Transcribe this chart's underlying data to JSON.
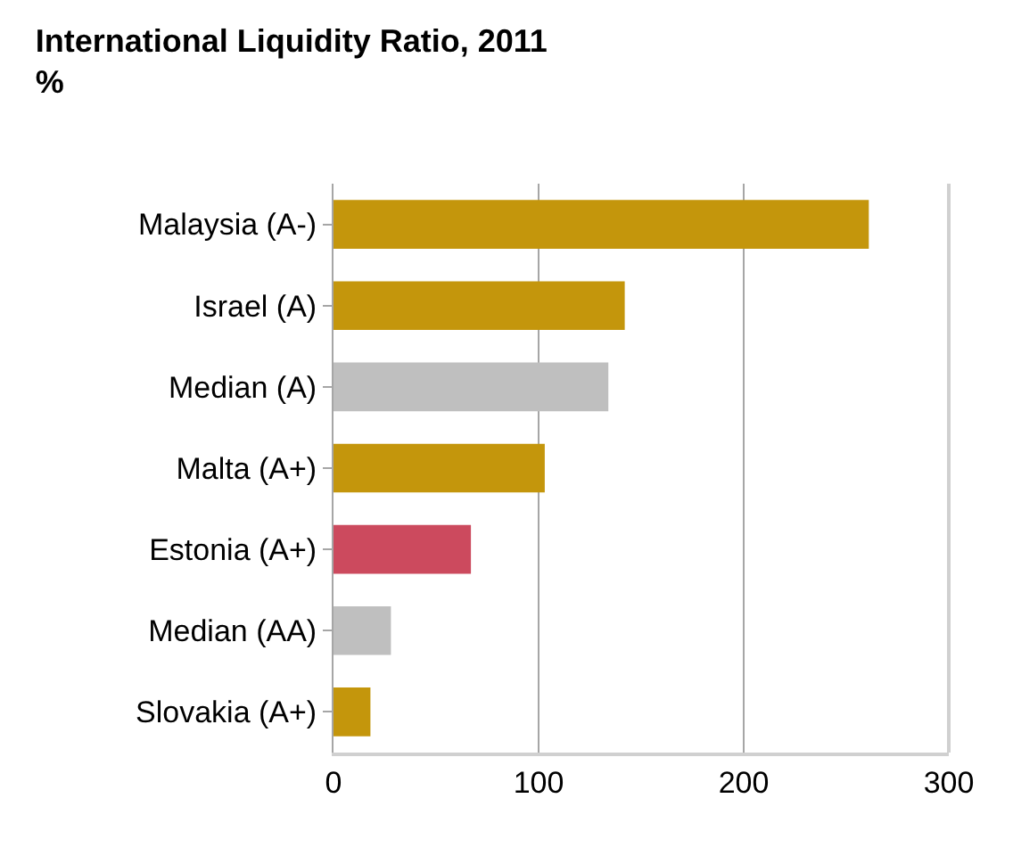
{
  "chart_data": {
    "type": "bar",
    "orientation": "horizontal",
    "title": "International Liquidity Ratio, 2011",
    "subtitle": "%",
    "categories": [
      "Malaysia (A-)",
      "Israel (A)",
      "Median (A)",
      "Malta (A+)",
      "Estonia (A+)",
      "Median (AA)",
      "Slovakia (A+)"
    ],
    "values": [
      261,
      142,
      134,
      103,
      67,
      28,
      18
    ],
    "colors": [
      "#c4960c",
      "#c4960c",
      "#bfbfbf",
      "#c4960c",
      "#cc4a5e",
      "#bfbfbf",
      "#c4960c"
    ],
    "xlim": [
      0,
      300
    ],
    "xticks": [
      0,
      100,
      200,
      300
    ],
    "grid": "x"
  }
}
